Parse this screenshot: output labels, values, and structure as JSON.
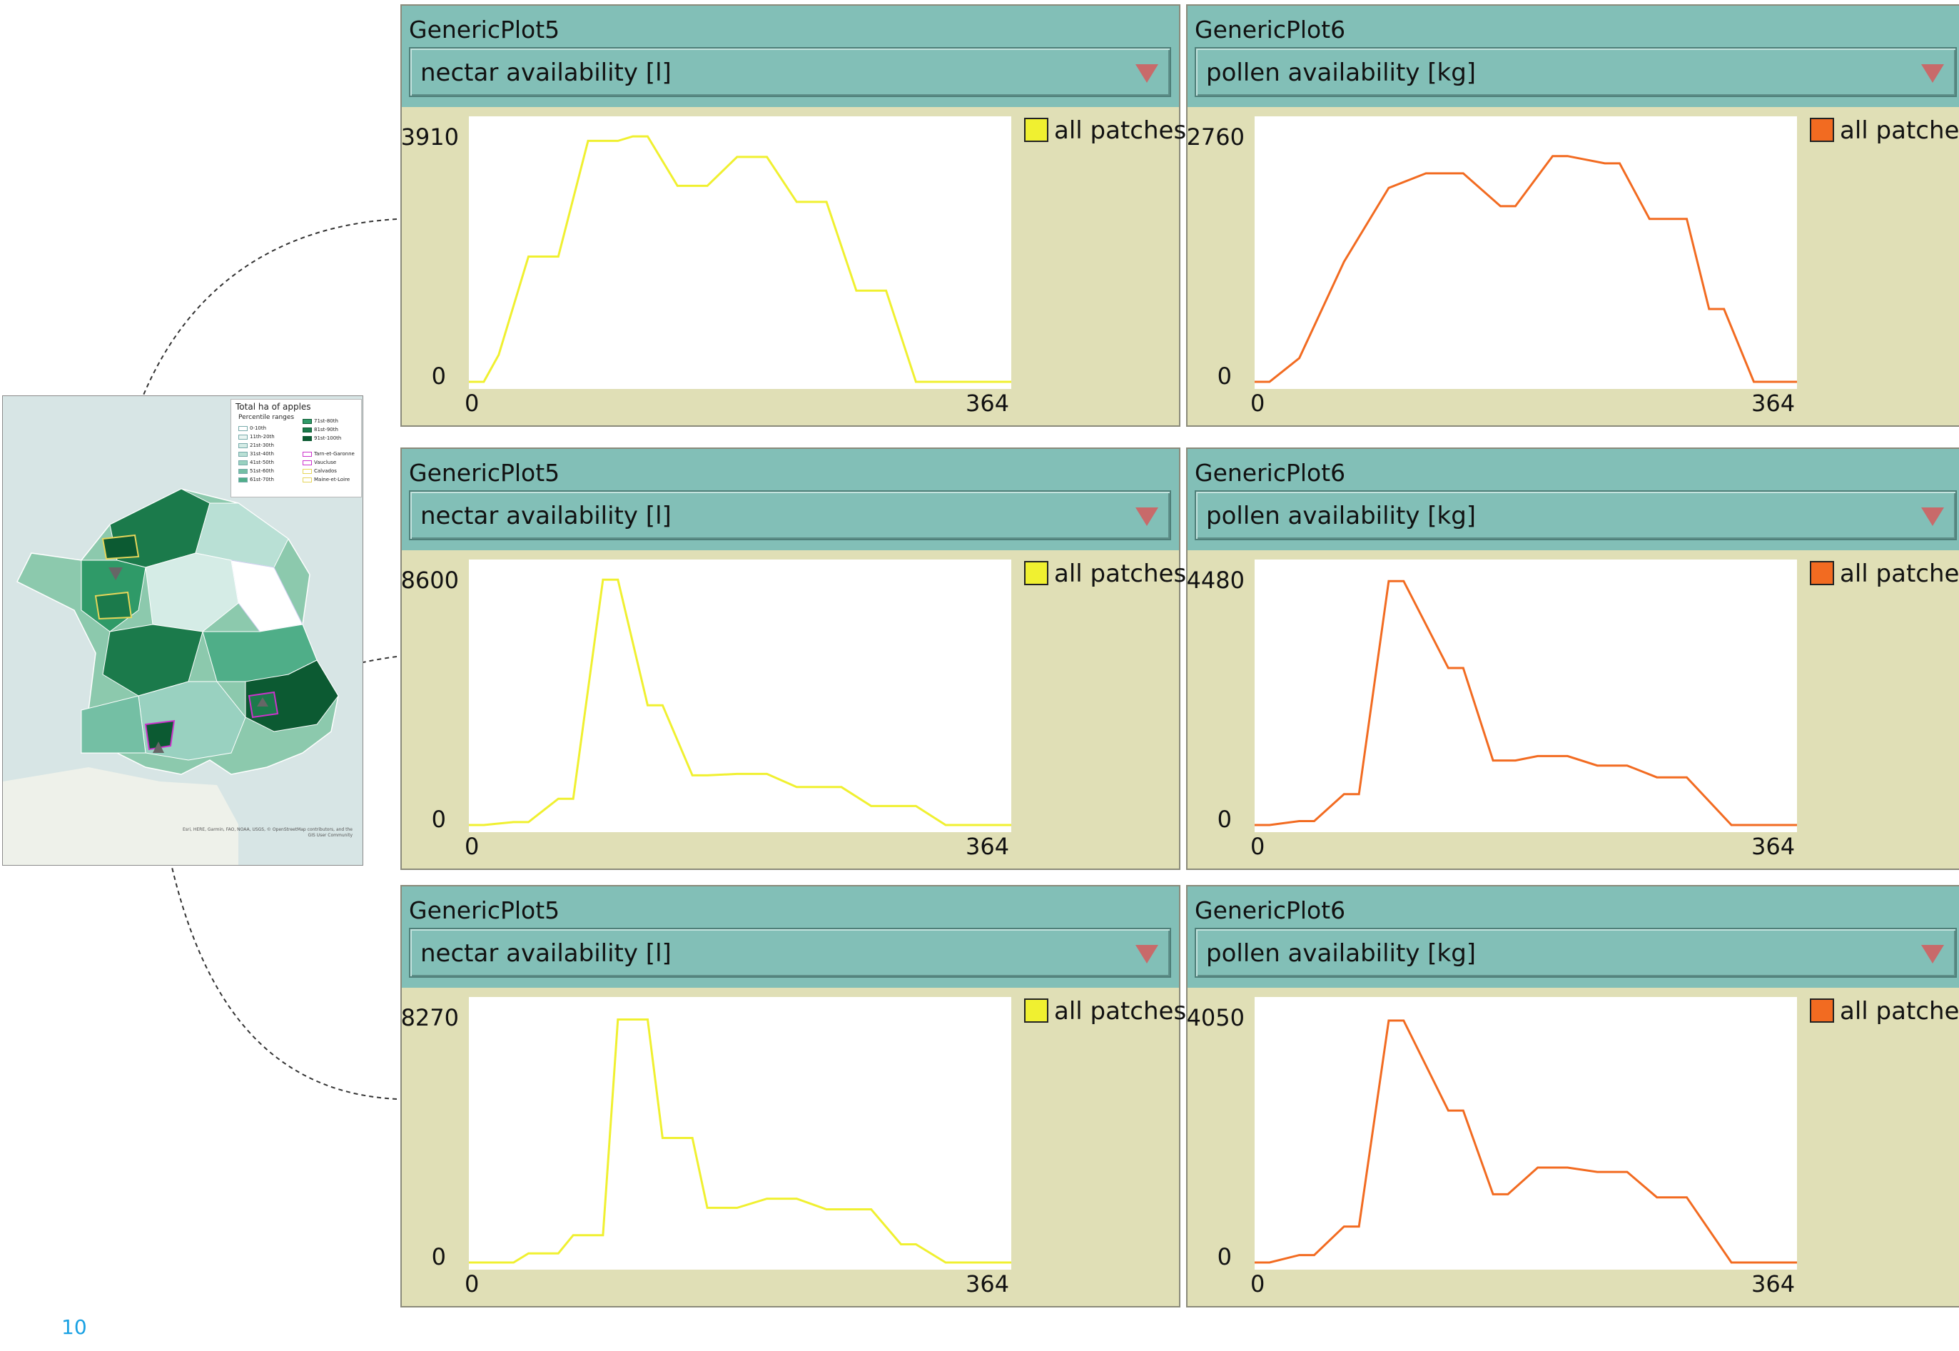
{
  "page": {
    "page_number": "10"
  },
  "map": {
    "legend_title": "Total ha of apples",
    "legend_subtitle": "Percentile ranges",
    "legend_items_left": [
      "0-10th",
      "11th-20th",
      "21st-30th",
      "31st-40th",
      "41st-50th",
      "51st-60th",
      "61st-70th"
    ],
    "legend_items_right": [
      "71st-80th",
      "81st-90th",
      "91st-100th",
      "Tarn-et-Garonne",
      "Vaucluse",
      "Calvados",
      "Maine-et-Loire"
    ],
    "colors_left": [
      "#ffffff",
      "#eaf5f2",
      "#d5ece6",
      "#b9e0d5",
      "#99d1c0",
      "#74bfa4",
      "#4fae88"
    ],
    "colors_right": [
      "#2f9a68",
      "#1b7a4b",
      "#0c5a32",
      "#ffffff",
      "#ffffff",
      "#ffffff",
      "#ffffff"
    ],
    "outline_colors_right": [
      "#0c5a32",
      "#0c5a32",
      "#0c5a32",
      "#cc33cc",
      "#cc33cc",
      "#e6d65a",
      "#e6d65a"
    ],
    "attribution": "Esri, HERE, Garmin, FAO, NOAA, USGS, © OpenStreetMap contributors, and the GIS User Community"
  },
  "plots": [
    {
      "title": "GenericPlot5",
      "dropdown": "nectar availability [l]",
      "legend": "all patches",
      "color": "#f0f030",
      "chart_data": {
        "type": "line",
        "x_min": "0",
        "x_max": "364",
        "y_min": "0",
        "y_max": "3910",
        "xlim": [
          0,
          364
        ],
        "ylim": [
          0,
          3910
        ],
        "x": [
          0,
          10,
          20,
          40,
          60,
          80,
          100,
          110,
          120,
          140,
          160,
          180,
          200,
          220,
          240,
          260,
          280,
          300,
          320,
          340,
          364
        ],
        "y": [
          0,
          0,
          420,
          1950,
          1950,
          3750,
          3750,
          3820,
          3820,
          3050,
          3050,
          3500,
          3500,
          2800,
          2800,
          1420,
          1420,
          0,
          0,
          0,
          0
        ]
      }
    },
    {
      "title": "GenericPlot6",
      "dropdown": "pollen availability [kg]",
      "legend": "all patches",
      "color": "#f26b21",
      "chart_data": {
        "type": "line",
        "x_min": "0",
        "x_max": "364",
        "y_min": "0",
        "y_max": "2760",
        "xlim": [
          0,
          364
        ],
        "ylim": [
          0,
          2760
        ],
        "x": [
          0,
          10,
          30,
          60,
          90,
          115,
          140,
          165,
          175,
          200,
          210,
          235,
          245,
          265,
          290,
          305,
          315,
          335,
          364
        ],
        "y": [
          0,
          0,
          260,
          1320,
          2130,
          2290,
          2290,
          1930,
          1930,
          2480,
          2480,
          2400,
          2400,
          1790,
          1790,
          800,
          800,
          0,
          0
        ]
      }
    },
    {
      "title": "GenericPlot5",
      "dropdown": "nectar availability [l]",
      "legend": "all patches",
      "color": "#f0f030",
      "chart_data": {
        "type": "line",
        "x_min": "0",
        "x_max": "364",
        "y_min": "0",
        "y_max": "8600",
        "xlim": [
          0,
          364
        ],
        "ylim": [
          0,
          8600
        ],
        "x": [
          0,
          10,
          30,
          40,
          60,
          70,
          90,
          100,
          120,
          130,
          150,
          160,
          180,
          200,
          220,
          250,
          270,
          300,
          320,
          364
        ],
        "y": [
          0,
          0,
          100,
          100,
          900,
          900,
          8400,
          8400,
          4100,
          4100,
          1700,
          1700,
          1750,
          1750,
          1300,
          1300,
          650,
          650,
          0,
          0
        ]
      }
    },
    {
      "title": "GenericPlot6",
      "dropdown": "pollen availability [kg]",
      "legend": "all patches",
      "color": "#f26b21",
      "chart_data": {
        "type": "line",
        "x_min": "0",
        "x_max": "364",
        "y_min": "0",
        "y_max": "4480",
        "xlim": [
          0,
          364
        ],
        "ylim": [
          0,
          4480
        ],
        "x": [
          0,
          10,
          30,
          40,
          60,
          70,
          90,
          100,
          130,
          140,
          160,
          175,
          190,
          210,
          230,
          250,
          270,
          290,
          320,
          364
        ],
        "y": [
          0,
          0,
          70,
          70,
          550,
          550,
          4350,
          4350,
          2800,
          2800,
          1150,
          1150,
          1230,
          1230,
          1060,
          1060,
          850,
          850,
          0,
          0
        ]
      }
    },
    {
      "title": "GenericPlot5",
      "dropdown": "nectar availability [l]",
      "legend": "all patches",
      "color": "#f0f030",
      "chart_data": {
        "type": "line",
        "x_min": "0",
        "x_max": "364",
        "y_min": "0",
        "y_max": "8270",
        "xlim": [
          0,
          364
        ],
        "ylim": [
          0,
          8270
        ],
        "x": [
          0,
          30,
          40,
          60,
          70,
          90,
          100,
          120,
          130,
          150,
          160,
          180,
          200,
          220,
          240,
          270,
          290,
          300,
          320,
          364
        ],
        "y": [
          0,
          0,
          300,
          300,
          900,
          900,
          8000,
          8000,
          4100,
          4100,
          1800,
          1800,
          2100,
          2100,
          1750,
          1750,
          600,
          600,
          0,
          0
        ]
      }
    },
    {
      "title": "GenericPlot6",
      "dropdown": "pollen availability [kg]",
      "legend": "all patches",
      "color": "#f26b21",
      "chart_data": {
        "type": "line",
        "x_min": "0",
        "x_max": "364",
        "y_min": "0",
        "y_max": "4050",
        "xlim": [
          0,
          364
        ],
        "ylim": [
          0,
          4050
        ],
        "x": [
          0,
          10,
          30,
          40,
          60,
          70,
          90,
          100,
          130,
          140,
          160,
          170,
          190,
          210,
          230,
          250,
          270,
          290,
          310,
          320,
          364
        ],
        "y": [
          0,
          0,
          120,
          120,
          580,
          580,
          3900,
          3900,
          2450,
          2450,
          1100,
          1100,
          1530,
          1530,
          1460,
          1460,
          1050,
          1050,
          350,
          0,
          0
        ]
      }
    }
  ]
}
